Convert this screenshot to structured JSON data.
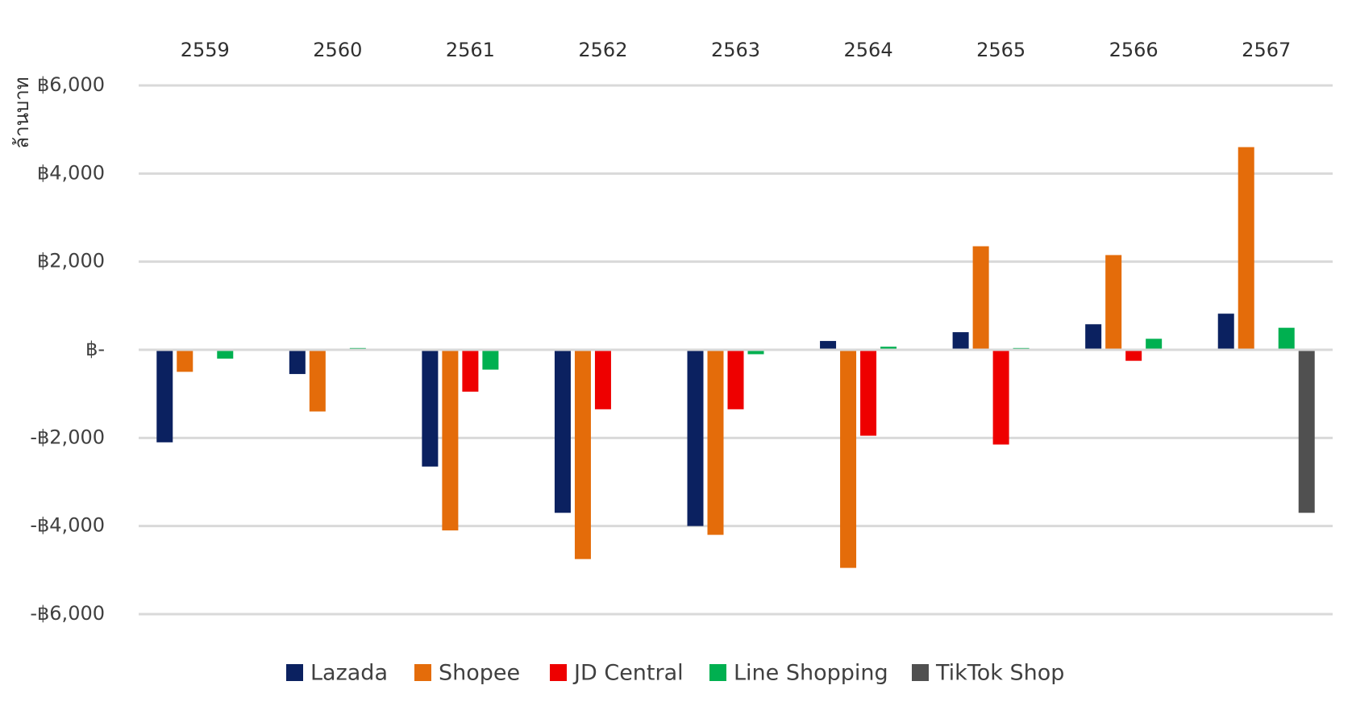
{
  "chart_data": {
    "type": "bar",
    "ylabel": "ล้านบาท",
    "ylim": [
      -6000,
      6000
    ],
    "yticks": [
      6000,
      4000,
      2000,
      0,
      -2000,
      -4000,
      -6000
    ],
    "ytick_labels": [
      "฿6,000",
      "฿4,000",
      "฿2,000",
      "฿-",
      "-฿2,000",
      "-฿4,000",
      "-฿6,000"
    ],
    "grid": true,
    "categories_position": "top",
    "legend_position": "bottom",
    "categories": [
      "2559",
      "2560",
      "2561",
      "2562",
      "2563",
      "2564",
      "2565",
      "2566",
      "2567"
    ],
    "series": [
      {
        "name": "Lazada",
        "color": "#0b2160",
        "values": [
          -2100,
          -550,
          -2650,
          -3700,
          -4000,
          200,
          400,
          580,
          820
        ]
      },
      {
        "name": "Shopee",
        "color": "#e46c0a",
        "values": [
          -500,
          -1400,
          -4100,
          -4750,
          -4200,
          -4950,
          2350,
          2150,
          4600
        ]
      },
      {
        "name": "JD Central",
        "color": "#ee0000",
        "values": [
          null,
          null,
          -950,
          -1350,
          -1350,
          -1950,
          -2150,
          -250,
          null
        ]
      },
      {
        "name": "Line Shopping",
        "color": "#00b050",
        "values": [
          -200,
          40,
          -450,
          null,
          -100,
          70,
          40,
          250,
          500
        ]
      },
      {
        "name": "TikTok Shop",
        "color": "#505050",
        "values": [
          null,
          null,
          null,
          null,
          null,
          null,
          null,
          null,
          -3700
        ]
      }
    ]
  }
}
